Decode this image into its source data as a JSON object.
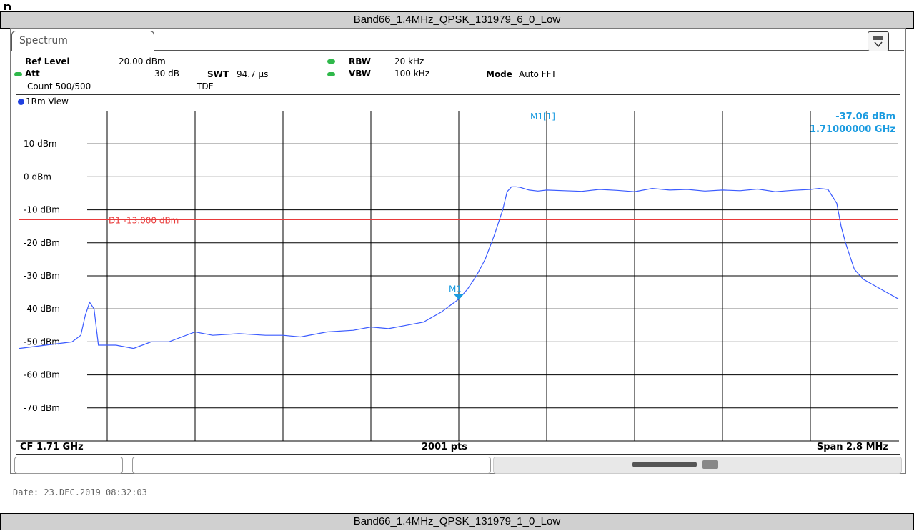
{
  "header": {
    "top_title": "Band66_1.4MHz_QPSK_131979_6_0_Low",
    "top_clip": "p"
  },
  "footer": {
    "bottom_title": "Band66_1.4MHz_QPSK_131979_1_0_Low"
  },
  "analyzer": {
    "tab_label": "Spectrum",
    "ref_level_label": "Ref Level",
    "ref_level_value": "20.00 dBm",
    "att_label": "Att",
    "att_value": "30 dB",
    "swt_label": "SWT",
    "swt_value": "94.7 µs",
    "rbw_label": "RBW",
    "rbw_value": "20 kHz",
    "vbw_label": "VBW",
    "vbw_value": "100 kHz",
    "mode_label": "Mode",
    "mode_value": "Auto FFT",
    "count_text": "Count 500/500",
    "tdf_text": "TDF",
    "view_label": "1Rm View",
    "marker_label": "M1[1]",
    "marker_level": "-37.06 dBm",
    "marker_freq": "1.71000000 GHz",
    "marker_tag": "M1",
    "limit_label": "D1  -13.000 dBm",
    "cf_label": "CF 1.71 GHz",
    "pts_label": "2001 pts",
    "span_label": "Span 2.8 MHz",
    "date_text": "Date: 23.DEC.2019  08:32:03",
    "colors": {
      "trace": "#3b5bff",
      "limit": "#e83a3a",
      "marker_text": "#1a9be0",
      "grid": "#000000"
    }
  },
  "chart_data": {
    "type": "line",
    "ylim": [
      -80,
      20
    ],
    "y_ticks": [
      "10 dBm",
      "0 dBm",
      "-10 dBm",
      "-20 dBm",
      "-30 dBm",
      "-40 dBm",
      "-50 dBm",
      "-60 dBm",
      "-70 dBm"
    ],
    "y_tick_values": [
      10,
      0,
      -10,
      -20,
      -30,
      -40,
      -50,
      -60,
      -70
    ],
    "limit_line": -13,
    "marker": {
      "x": 5.0,
      "y": -37.06
    },
    "x_range": [
      0,
      10
    ],
    "series": [
      {
        "x": [
          0,
          0.3,
          0.6,
          0.7,
          0.75,
          0.8,
          0.85,
          0.9,
          0.95,
          1.0,
          1.1,
          1.3,
          1.5,
          1.7,
          2.0,
          2.2,
          2.5,
          2.8,
          3.0,
          3.2,
          3.5,
          3.8,
          4.0,
          4.2,
          4.4,
          4.6,
          4.8,
          4.9,
          5.0,
          5.1,
          5.2,
          5.3,
          5.4,
          5.5,
          5.55,
          5.6,
          5.65,
          5.7,
          5.8,
          5.9,
          6.0,
          6.2,
          6.4,
          6.6,
          6.8,
          7.0,
          7.2,
          7.4,
          7.6,
          7.8,
          8.0,
          8.2,
          8.4,
          8.6,
          8.8,
          9.0,
          9.1,
          9.2,
          9.3,
          9.35,
          9.4,
          9.45,
          9.5,
          9.6,
          9.8,
          10.0
        ],
        "values": [
          -52,
          -51,
          -50,
          -48,
          -42,
          -38,
          -40,
          -51,
          -51,
          -51,
          -51,
          -52,
          -50,
          -50,
          -47,
          -48,
          -47.5,
          -48,
          -48,
          -48.5,
          -47,
          -46.5,
          -45.5,
          -46,
          -45,
          -44,
          -41,
          -39,
          -37.06,
          -34,
          -30,
          -25,
          -18,
          -10,
          -4.5,
          -3,
          -3,
          -3.2,
          -4,
          -4.3,
          -4,
          -4.2,
          -4.4,
          -3.8,
          -4.1,
          -4.5,
          -3.5,
          -4,
          -3.8,
          -4.3,
          -4,
          -4.2,
          -3.7,
          -4.5,
          -4.1,
          -3.8,
          -3.5,
          -3.8,
          -8,
          -15,
          -20,
          -24,
          -28,
          -31,
          -34,
          -37
        ]
      }
    ]
  }
}
